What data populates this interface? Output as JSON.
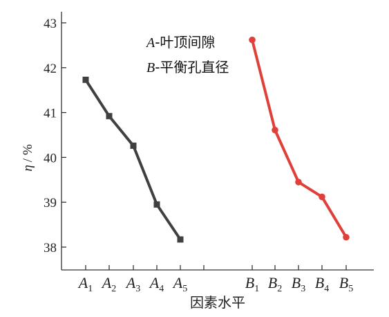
{
  "chart_data": {
    "type": "line",
    "xlabel": "因素水平",
    "ylabel": "η / %",
    "ylabel_symbol": "η",
    "ylabel_unit": "/ %",
    "ylim": [
      38,
      43
    ],
    "yticks": [
      38,
      39,
      40,
      41,
      42,
      43
    ],
    "legend": [
      {
        "letter": "A",
        "text": "-叶顶间隙"
      },
      {
        "letter": "B",
        "text": "-平衡孔直径"
      }
    ],
    "series": [
      {
        "categories": [
          {
            "main": "A",
            "sub": "1"
          },
          {
            "main": "A",
            "sub": "2"
          },
          {
            "main": "A",
            "sub": "3"
          },
          {
            "main": "A",
            "sub": "4"
          },
          {
            "main": "A",
            "sub": "5"
          }
        ],
        "values": [
          41.73,
          40.92,
          40.26,
          38.95,
          38.17
        ],
        "color": "#404040",
        "marker": "square"
      },
      {
        "categories": [
          {
            "main": "B",
            "sub": "1"
          },
          {
            "main": "B",
            "sub": "2"
          },
          {
            "main": "B",
            "sub": "3"
          },
          {
            "main": "B",
            "sub": "4"
          },
          {
            "main": "B",
            "sub": "5"
          }
        ],
        "values": [
          42.62,
          40.61,
          39.45,
          39.12,
          38.22
        ],
        "color": "#e0403a",
        "marker": "circle"
      }
    ]
  }
}
